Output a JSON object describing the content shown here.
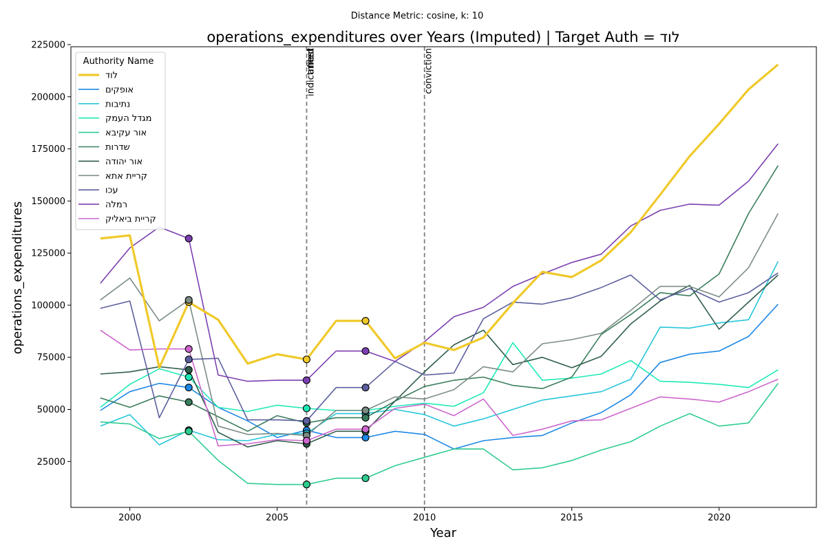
{
  "suptitle": "Distance Metric: cosine, k: 10",
  "chart_data": {
    "type": "line",
    "title": "operations_expenditures over Years (Imputed) | Target Auth = לוד",
    "xlabel": "Year",
    "ylabel": "operations_expenditures",
    "xlim": [
      1998,
      2023.3
    ],
    "ylim": [
      3000,
      224000
    ],
    "xticks": [
      2000,
      2005,
      2010,
      2015,
      2020
    ],
    "yticks": [
      25000,
      50000,
      75000,
      100000,
      125000,
      150000,
      175000,
      200000,
      225000
    ],
    "x": [
      1999,
      2000,
      2001,
      2002,
      2003,
      2004,
      2005,
      2006,
      2007,
      2008,
      2009,
      2010,
      2011,
      2012,
      2013,
      2014,
      2015,
      2016,
      2017,
      2018,
      2019,
      2020,
      2021,
      2022
    ],
    "legend": {
      "title": "Authority Name",
      "position": "upper left"
    },
    "event_lines": [
      {
        "x": 2006,
        "labels": [
          "indictment",
          "arrest",
          "filed"
        ]
      },
      {
        "x": 2010,
        "labels": [
          "conviction"
        ]
      }
    ],
    "marker_years": [
      2002,
      2006,
      2008
    ],
    "series": [
      {
        "name": "לוד",
        "color": "#f0c929",
        "width": 3.2,
        "target": true,
        "values": [
          132000,
          133500,
          70000,
          101500,
          93000,
          72000,
          76500,
          74000,
          92500,
          92500,
          74500,
          82000,
          78500,
          84500,
          101000,
          116000,
          113500,
          121500,
          135000,
          153000,
          171500,
          187000,
          203500,
          215500
        ]
      },
      {
        "name": "אופקים",
        "color": "#1e88e5",
        "width": 1.6,
        "values": [
          49500,
          58500,
          62500,
          60500,
          51000,
          44500,
          36500,
          40000,
          36500,
          36500,
          39500,
          38000,
          31000,
          35000,
          36500,
          37500,
          43500,
          48500,
          57000,
          72500,
          76500,
          78000,
          85000,
          100500
        ]
      },
      {
        "name": "נתיבות",
        "color": "#26c6da",
        "width": 1.6,
        "values": [
          42000,
          47500,
          33000,
          40000,
          35500,
          35000,
          38000,
          38500,
          48000,
          48000,
          50000,
          47500,
          42000,
          45500,
          50000,
          54500,
          56500,
          58500,
          64500,
          89500,
          89000,
          91500,
          93000,
          121000
        ]
      },
      {
        "name": "מגדל העמק",
        "color": "#1de9b6",
        "width": 1.6,
        "values": [
          51000,
          62000,
          69500,
          65500,
          51000,
          49000,
          52000,
          50500,
          49500,
          49500,
          51500,
          53000,
          51500,
          58000,
          82000,
          64000,
          65000,
          67000,
          73500,
          63500,
          63000,
          62000,
          60500,
          69000
        ]
      },
      {
        "name": "אור עקיבא",
        "color": "#2ecc8f",
        "width": 1.6,
        "values": [
          44000,
          43000,
          36000,
          39500,
          25500,
          14500,
          14000,
          14000,
          17000,
          17000,
          23000,
          27000,
          31000,
          31000,
          21000,
          22000,
          25500,
          30500,
          34500,
          42000,
          48000,
          42000,
          43500,
          62500
        ]
      },
      {
        "name": "שדרות",
        "color": "#3a7d5c",
        "width": 1.6,
        "values": [
          55500,
          51000,
          56500,
          53500,
          46500,
          39500,
          47000,
          43500,
          46000,
          46000,
          54000,
          61000,
          64000,
          65500,
          61500,
          60000,
          65500,
          86000,
          95500,
          106000,
          104500,
          115000,
          144000,
          167000
        ]
      },
      {
        "name": "אור יהודה",
        "color": "#2f5d4a",
        "width": 1.6,
        "values": [
          67000,
          68000,
          70500,
          69000,
          39000,
          32000,
          35000,
          33500,
          39500,
          39500,
          54000,
          68000,
          81000,
          88000,
          71500,
          75000,
          70000,
          75500,
          91000,
          102000,
          109500,
          88500,
          101500,
          114500
        ]
      },
      {
        "name": "קריית אתא",
        "color": "#7b8c85",
        "width": 1.6,
        "values": [
          102500,
          113000,
          92500,
          102500,
          42000,
          38000,
          38500,
          37500,
          49500,
          49500,
          56000,
          55000,
          59500,
          70500,
          68000,
          81500,
          83500,
          86500,
          97500,
          109000,
          109000,
          104000,
          118000,
          144000
        ]
      },
      {
        "name": "עכו",
        "color": "#5c5f9e",
        "width": 1.6,
        "values": [
          98500,
          102000,
          46000,
          74000,
          74500,
          45000,
          45000,
          44500,
          60500,
          60500,
          73000,
          66500,
          67500,
          93500,
          101500,
          100500,
          103500,
          108500,
          114500,
          102500,
          108000,
          101500,
          106000,
          115500
        ]
      },
      {
        "name": "רמלה",
        "color": "#7b3fb0",
        "width": 1.6,
        "values": [
          110500,
          127500,
          137500,
          132000,
          66500,
          63500,
          64000,
          64000,
          78000,
          78000,
          73000,
          82500,
          94500,
          99000,
          109000,
          115000,
          120500,
          124500,
          138000,
          145500,
          148500,
          148000,
          159500,
          177500
        ]
      },
      {
        "name": "קריית ביאליק",
        "color": "#cc66cc",
        "width": 1.6,
        "values": [
          88000,
          78500,
          79000,
          79000,
          32500,
          33500,
          35500,
          35000,
          40500,
          40500,
          50500,
          52500,
          47000,
          55000,
          37500,
          40500,
          44500,
          45000,
          50500,
          56000,
          55000,
          53500,
          58500,
          64500
        ]
      }
    ]
  }
}
